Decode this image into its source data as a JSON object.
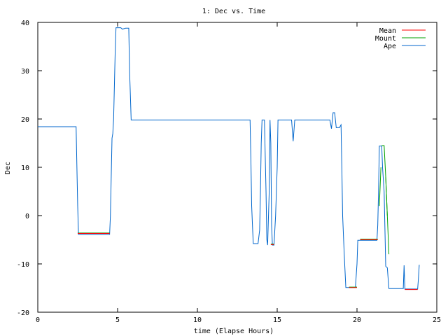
{
  "chart_data": {
    "type": "line",
    "title": "1: Dec vs. Time",
    "xlabel": "time (Elapse Hours)",
    "ylabel": "Dec",
    "xlim": [
      0,
      25
    ],
    "ylim": [
      -20,
      40
    ],
    "xticks": [
      0,
      5,
      10,
      15,
      20,
      25
    ],
    "yticks": [
      -20,
      -10,
      0,
      10,
      20,
      30,
      40
    ],
    "grid": false,
    "legend_position": "top-right",
    "series": [
      {
        "name": "Mean",
        "color": "#ff0000",
        "points": [
          [
            2.5,
            -3.7
          ],
          [
            4.5,
            -3.7
          ],
          [
            14.6,
            -6.0
          ],
          [
            14.8,
            -6.0
          ],
          [
            19.5,
            -14.9
          ],
          [
            20.0,
            -14.9
          ],
          [
            20.2,
            -5.0
          ],
          [
            21.3,
            -5.0
          ],
          [
            23.0,
            -15.3
          ],
          [
            23.8,
            -15.3
          ]
        ]
      },
      {
        "name": "Mount",
        "color": "#00a000",
        "points": [
          [
            2.5,
            -3.6
          ],
          [
            4.5,
            -3.6
          ],
          [
            14.6,
            -5.9
          ],
          [
            14.8,
            -5.9
          ],
          [
            19.5,
            -14.8
          ],
          [
            20.0,
            -14.8
          ],
          [
            20.2,
            -4.9
          ],
          [
            21.3,
            -4.9
          ],
          [
            21.4,
            2
          ],
          [
            21.5,
            10
          ],
          [
            21.55,
            14.5
          ],
          [
            21.7,
            14.5
          ],
          [
            21.8,
            8
          ],
          [
            21.9,
            0
          ],
          [
            22.0,
            -8
          ]
        ]
      },
      {
        "name": "Ape",
        "color": "#0066cc",
        "points": [
          [
            0,
            18.4
          ],
          [
            2.4,
            18.4
          ],
          [
            2.45,
            10
          ],
          [
            2.5,
            2
          ],
          [
            2.55,
            -3.9
          ],
          [
            4.5,
            -3.9
          ],
          [
            4.55,
            0
          ],
          [
            4.6,
            8
          ],
          [
            4.65,
            16
          ],
          [
            4.7,
            17
          ],
          [
            4.75,
            20
          ],
          [
            4.8,
            27
          ],
          [
            4.85,
            34
          ],
          [
            4.9,
            38.9
          ],
          [
            5.2,
            38.9
          ],
          [
            5.3,
            38.6
          ],
          [
            5.5,
            38.8
          ],
          [
            5.7,
            38.8
          ],
          [
            5.75,
            30
          ],
          [
            5.8,
            25
          ],
          [
            5.85,
            19.8
          ],
          [
            13.3,
            19.8
          ],
          [
            13.35,
            12
          ],
          [
            13.4,
            2
          ],
          [
            13.45,
            -2
          ],
          [
            13.5,
            -5.8
          ],
          [
            13.8,
            -5.8
          ],
          [
            13.9,
            -3
          ],
          [
            13.95,
            5
          ],
          [
            14.0,
            15
          ],
          [
            14.05,
            19.8
          ],
          [
            14.2,
            19.8
          ],
          [
            14.3,
            5
          ],
          [
            14.35,
            -5
          ],
          [
            14.4,
            -6.1
          ],
          [
            14.5,
            5
          ],
          [
            14.55,
            19.8
          ],
          [
            14.6,
            15
          ],
          [
            14.65,
            -2
          ],
          [
            14.7,
            -6.1
          ],
          [
            14.8,
            -6.1
          ],
          [
            14.9,
            0
          ],
          [
            15.0,
            10
          ],
          [
            15.05,
            19.8
          ],
          [
            15.9,
            19.8
          ],
          [
            16.0,
            15.4
          ],
          [
            16.1,
            19.8
          ],
          [
            18.3,
            19.8
          ],
          [
            18.4,
            18
          ],
          [
            18.5,
            21.3
          ],
          [
            18.6,
            21.3
          ],
          [
            18.7,
            18.2
          ],
          [
            18.9,
            18.2
          ],
          [
            19.0,
            18.8
          ],
          [
            19.05,
            10
          ],
          [
            19.1,
            0
          ],
          [
            19.2,
            -8
          ],
          [
            19.3,
            -14.9
          ],
          [
            19.9,
            -14.9
          ],
          [
            20.0,
            -10
          ],
          [
            20.05,
            -5.1
          ],
          [
            21.25,
            -5.1
          ],
          [
            21.3,
            -2
          ],
          [
            21.35,
            5
          ],
          [
            21.4,
            14.4
          ],
          [
            21.55,
            14.4
          ],
          [
            21.6,
            10
          ],
          [
            21.7,
            5
          ],
          [
            21.8,
            -10.5
          ],
          [
            21.9,
            -10.8
          ],
          [
            21.95,
            -13
          ],
          [
            22.0,
            -15.1
          ],
          [
            22.9,
            -15.1
          ],
          [
            22.95,
            -10.3
          ],
          [
            23.0,
            -15.2
          ],
          [
            23.8,
            -15.2
          ],
          [
            23.85,
            -13
          ],
          [
            23.9,
            -10.2
          ]
        ]
      }
    ]
  }
}
